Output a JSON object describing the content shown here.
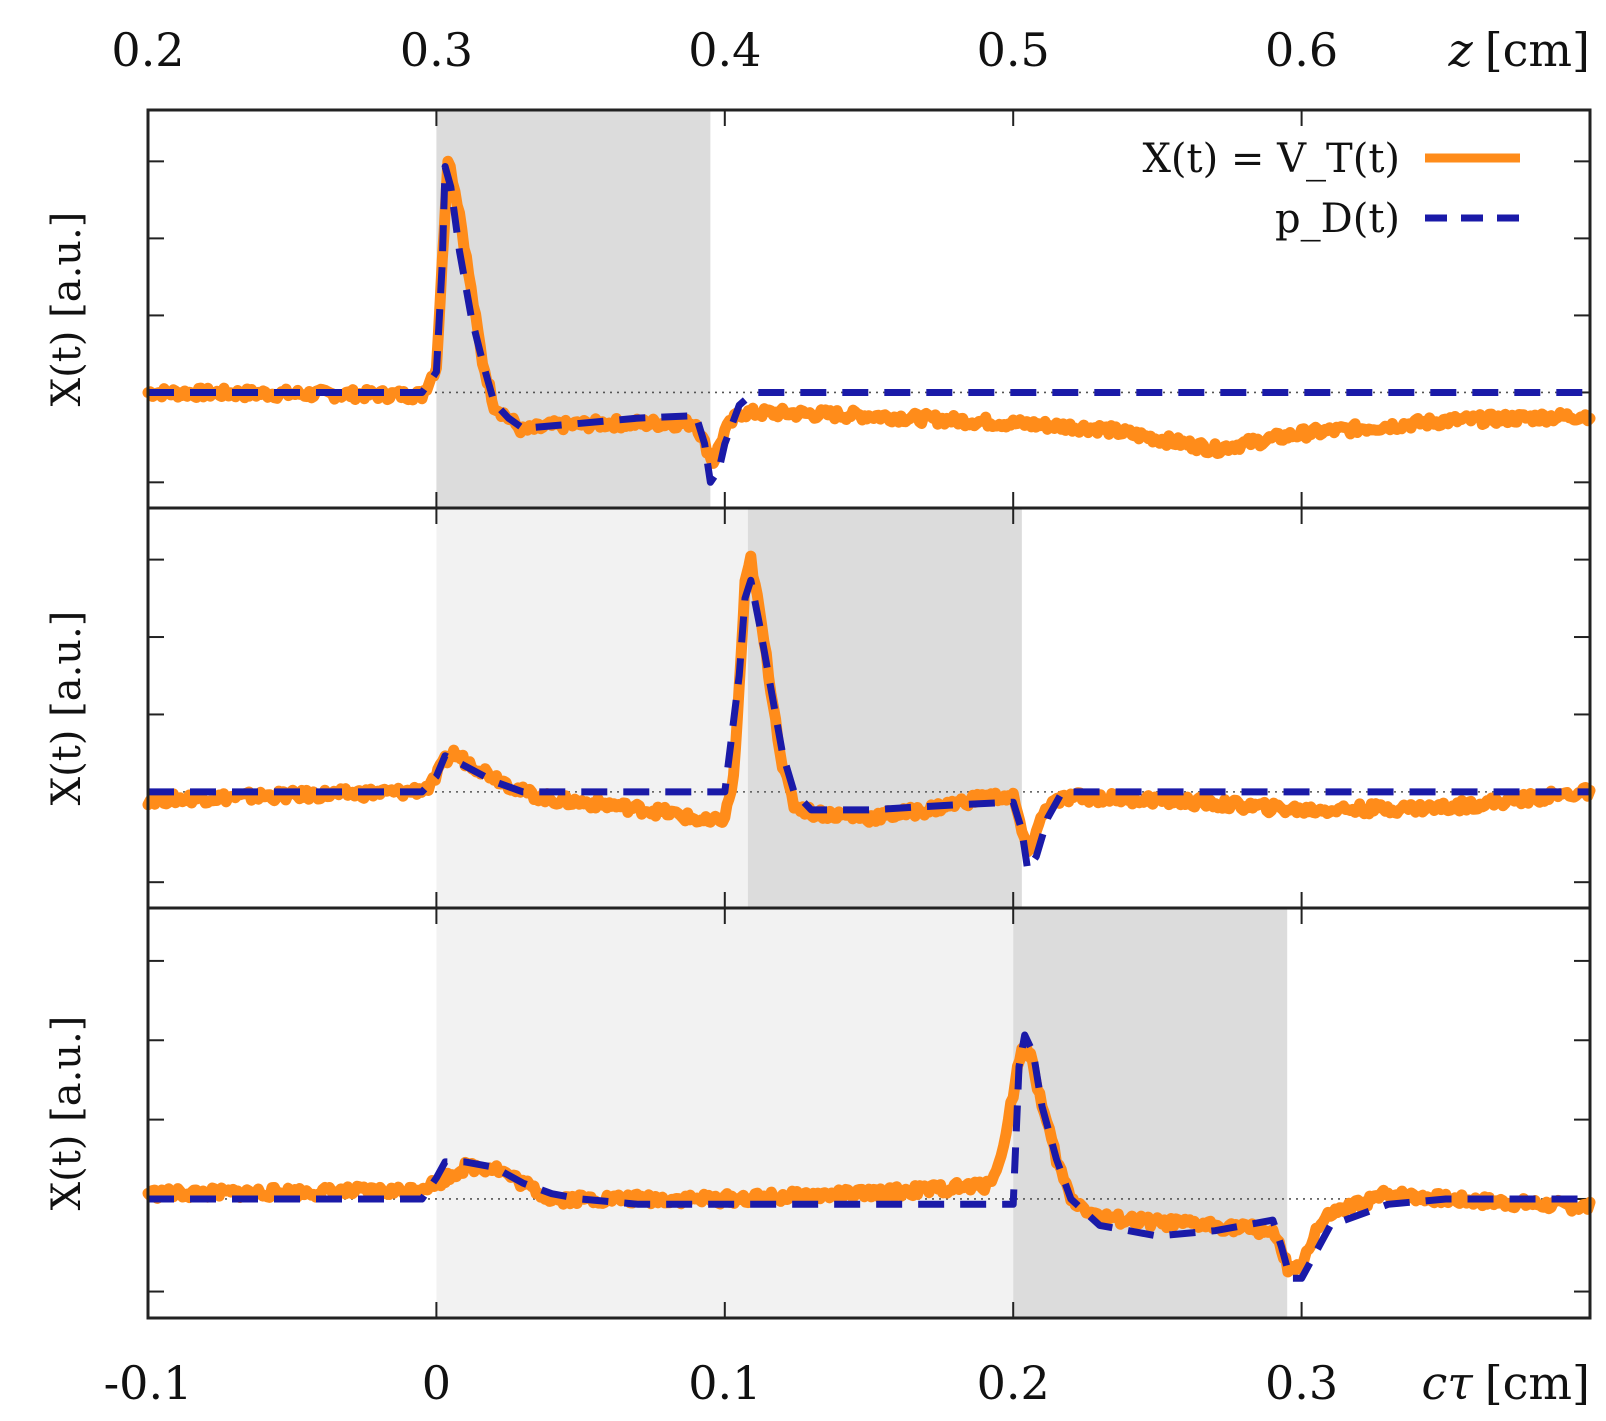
{
  "figure": {
    "top_axis": {
      "variable": "z",
      "unit": "[cm]",
      "ticks": [
        "0.2",
        "0.3",
        "0.4",
        "0.5",
        "0.6"
      ],
      "tick_values": [
        0.2,
        0.3,
        0.4,
        0.5,
        0.6
      ]
    },
    "bottom_axis": {
      "variable": "cτ",
      "unit": "[cm]",
      "ticks": [
        "-0.1",
        "0",
        "0.1",
        "0.2",
        "0.3"
      ],
      "tick_values": [
        -0.1,
        0,
        0.1,
        0.2,
        0.3
      ]
    },
    "ylabel": "X(t) [a.u.]",
    "legend": [
      {
        "label": "X(t) = V_T(t)",
        "color": "#ff8c1a",
        "style": "solid"
      },
      {
        "label": "p_D(t)",
        "color": "#1a1aa8",
        "style": "dashed"
      }
    ],
    "colors": {
      "measured": "#ff8c1a",
      "model": "#1a1aa8",
      "dark_band": "#dcdcdc",
      "light_band": "#f2f2f2"
    }
  },
  "chart_data": [
    {
      "type": "line",
      "panel": "top",
      "x_unit": "cτ [cm]",
      "xlim": [
        -0.1,
        0.4
      ],
      "ylim": [
        -0.45,
        1.1
      ],
      "baseline": 0,
      "light_band": null,
      "dark_band": [
        0.0,
        0.095
      ],
      "series": [
        {
          "name": "X(t) = V_T(t)",
          "points": [
            [
              -0.1,
              0.0
            ],
            [
              -0.005,
              -0.01
            ],
            [
              0.0,
              0.1
            ],
            [
              0.002,
              0.5
            ],
            [
              0.004,
              0.92
            ],
            [
              0.008,
              0.7
            ],
            [
              0.012,
              0.4
            ],
            [
              0.016,
              0.12
            ],
            [
              0.02,
              -0.05
            ],
            [
              0.025,
              -0.1
            ],
            [
              0.03,
              -0.15
            ],
            [
              0.04,
              -0.13
            ],
            [
              0.06,
              -0.12
            ],
            [
              0.08,
              -0.12
            ],
            [
              0.09,
              -0.12
            ],
            [
              0.093,
              -0.2
            ],
            [
              0.096,
              -0.27
            ],
            [
              0.1,
              -0.15
            ],
            [
              0.105,
              -0.08
            ],
            [
              0.12,
              -0.08
            ],
            [
              0.15,
              -0.09
            ],
            [
              0.2,
              -0.12
            ],
            [
              0.23,
              -0.14
            ],
            [
              0.27,
              -0.22
            ],
            [
              0.28,
              -0.2
            ],
            [
              0.3,
              -0.16
            ],
            [
              0.35,
              -0.11
            ],
            [
              0.4,
              -0.09
            ]
          ]
        },
        {
          "name": "p_D(t)",
          "points": [
            [
              -0.1,
              0.0
            ],
            [
              -0.005,
              0.0
            ],
            [
              0.0,
              0.08
            ],
            [
              0.002,
              0.5
            ],
            [
              0.003,
              0.88
            ],
            [
              0.005,
              0.8
            ],
            [
              0.008,
              0.55
            ],
            [
              0.012,
              0.3
            ],
            [
              0.016,
              0.12
            ],
            [
              0.02,
              -0.04
            ],
            [
              0.025,
              -0.1
            ],
            [
              0.03,
              -0.14
            ],
            [
              0.05,
              -0.12
            ],
            [
              0.07,
              -0.1
            ],
            [
              0.09,
              -0.09
            ],
            [
              0.093,
              -0.2
            ],
            [
              0.095,
              -0.35
            ],
            [
              0.098,
              -0.3
            ],
            [
              0.1,
              -0.2
            ],
            [
              0.105,
              -0.05
            ],
            [
              0.11,
              0.0
            ],
            [
              0.4,
              0.0
            ]
          ]
        }
      ]
    },
    {
      "type": "line",
      "panel": "middle",
      "x_unit": "cτ [cm]",
      "xlim": [
        -0.1,
        0.4
      ],
      "ylim": [
        -0.45,
        1.1
      ],
      "baseline": 0,
      "light_band": [
        0.0,
        0.108
      ],
      "dark_band": [
        0.108,
        0.203
      ],
      "series": [
        {
          "name": "X(t) = V_T(t)",
          "points": [
            [
              -0.1,
              -0.03
            ],
            [
              -0.01,
              0.0
            ],
            [
              -0.002,
              0.02
            ],
            [
              0.003,
              0.12
            ],
            [
              0.006,
              0.15
            ],
            [
              0.01,
              0.12
            ],
            [
              0.02,
              0.06
            ],
            [
              0.03,
              0.0
            ],
            [
              0.04,
              -0.03
            ],
            [
              0.06,
              -0.05
            ],
            [
              0.08,
              -0.08
            ],
            [
              0.095,
              -0.12
            ],
            [
              0.1,
              -0.1
            ],
            [
              0.103,
              0.05
            ],
            [
              0.105,
              0.4
            ],
            [
              0.107,
              0.8
            ],
            [
              0.109,
              0.9
            ],
            [
              0.112,
              0.7
            ],
            [
              0.116,
              0.4
            ],
            [
              0.12,
              0.1
            ],
            [
              0.124,
              -0.05
            ],
            [
              0.13,
              -0.08
            ],
            [
              0.15,
              -0.1
            ],
            [
              0.17,
              -0.07
            ],
            [
              0.19,
              -0.02
            ],
            [
              0.2,
              -0.02
            ],
            [
              0.203,
              -0.15
            ],
            [
              0.205,
              -0.25
            ],
            [
              0.208,
              -0.15
            ],
            [
              0.212,
              -0.05
            ],
            [
              0.22,
              -0.02
            ],
            [
              0.25,
              -0.03
            ],
            [
              0.3,
              -0.07
            ],
            [
              0.35,
              -0.06
            ],
            [
              0.4,
              0.0
            ]
          ]
        },
        {
          "name": "p_D(t)",
          "points": [
            [
              -0.1,
              0.0
            ],
            [
              -0.005,
              0.0
            ],
            [
              0.0,
              0.06
            ],
            [
              0.003,
              0.14
            ],
            [
              0.01,
              0.1
            ],
            [
              0.02,
              0.04
            ],
            [
              0.03,
              0.0
            ],
            [
              0.1,
              0.0
            ],
            [
              0.105,
              0.45
            ],
            [
              0.107,
              0.75
            ],
            [
              0.109,
              0.82
            ],
            [
              0.112,
              0.65
            ],
            [
              0.116,
              0.4
            ],
            [
              0.12,
              0.15
            ],
            [
              0.124,
              0.0
            ],
            [
              0.13,
              -0.07
            ],
            [
              0.15,
              -0.07
            ],
            [
              0.18,
              -0.05
            ],
            [
              0.2,
              -0.04
            ],
            [
              0.203,
              -0.15
            ],
            [
              0.205,
              -0.3
            ],
            [
              0.208,
              -0.25
            ],
            [
              0.212,
              -0.1
            ],
            [
              0.217,
              0.0
            ],
            [
              0.4,
              0.0
            ]
          ]
        }
      ]
    },
    {
      "type": "line",
      "panel": "bottom",
      "x_unit": "cτ [cm]",
      "xlim": [
        -0.1,
        0.4
      ],
      "ylim": [
        -0.45,
        1.1
      ],
      "baseline": 0,
      "light_band": [
        0.0,
        0.2
      ],
      "dark_band": [
        0.2,
        0.295
      ],
      "series": [
        {
          "name": "X(t) = V_T(t)",
          "points": [
            [
              -0.1,
              0.02
            ],
            [
              -0.01,
              0.03
            ],
            [
              0.0,
              0.06
            ],
            [
              0.01,
              0.12
            ],
            [
              0.02,
              0.12
            ],
            [
              0.03,
              0.06
            ],
            [
              0.04,
              0.0
            ],
            [
              0.06,
              0.0
            ],
            [
              0.1,
              0.0
            ],
            [
              0.15,
              0.02
            ],
            [
              0.19,
              0.05
            ],
            [
              0.195,
              0.12
            ],
            [
              0.2,
              0.4
            ],
            [
              0.203,
              0.58
            ],
            [
              0.206,
              0.55
            ],
            [
              0.21,
              0.35
            ],
            [
              0.215,
              0.15
            ],
            [
              0.22,
              0.0
            ],
            [
              0.23,
              -0.07
            ],
            [
              0.25,
              -0.09
            ],
            [
              0.27,
              -0.1
            ],
            [
              0.29,
              -0.12
            ],
            [
              0.293,
              -0.2
            ],
            [
              0.296,
              -0.28
            ],
            [
              0.3,
              -0.25
            ],
            [
              0.305,
              -0.12
            ],
            [
              0.31,
              -0.06
            ],
            [
              0.33,
              0.02
            ],
            [
              0.35,
              0.0
            ],
            [
              0.4,
              -0.03
            ]
          ]
        },
        {
          "name": "p_D(t)",
          "points": [
            [
              -0.1,
              0.0
            ],
            [
              -0.005,
              0.0
            ],
            [
              0.0,
              0.08
            ],
            [
              0.003,
              0.14
            ],
            [
              0.01,
              0.14
            ],
            [
              0.02,
              0.12
            ],
            [
              0.03,
              0.06
            ],
            [
              0.04,
              0.02
            ],
            [
              0.05,
              0.0
            ],
            [
              0.07,
              -0.02
            ],
            [
              0.1,
              -0.02
            ],
            [
              0.15,
              -0.02
            ],
            [
              0.2,
              -0.02
            ],
            [
              0.202,
              0.5
            ],
            [
              0.204,
              0.62
            ],
            [
              0.207,
              0.55
            ],
            [
              0.21,
              0.35
            ],
            [
              0.215,
              0.15
            ],
            [
              0.22,
              0.0
            ],
            [
              0.23,
              -0.1
            ],
            [
              0.25,
              -0.14
            ],
            [
              0.27,
              -0.12
            ],
            [
              0.29,
              -0.08
            ],
            [
              0.293,
              -0.18
            ],
            [
              0.296,
              -0.3
            ],
            [
              0.3,
              -0.3
            ],
            [
              0.305,
              -0.2
            ],
            [
              0.31,
              -0.1
            ],
            [
              0.33,
              -0.02
            ],
            [
              0.35,
              0.0
            ],
            [
              0.4,
              0.0
            ]
          ]
        }
      ]
    }
  ]
}
